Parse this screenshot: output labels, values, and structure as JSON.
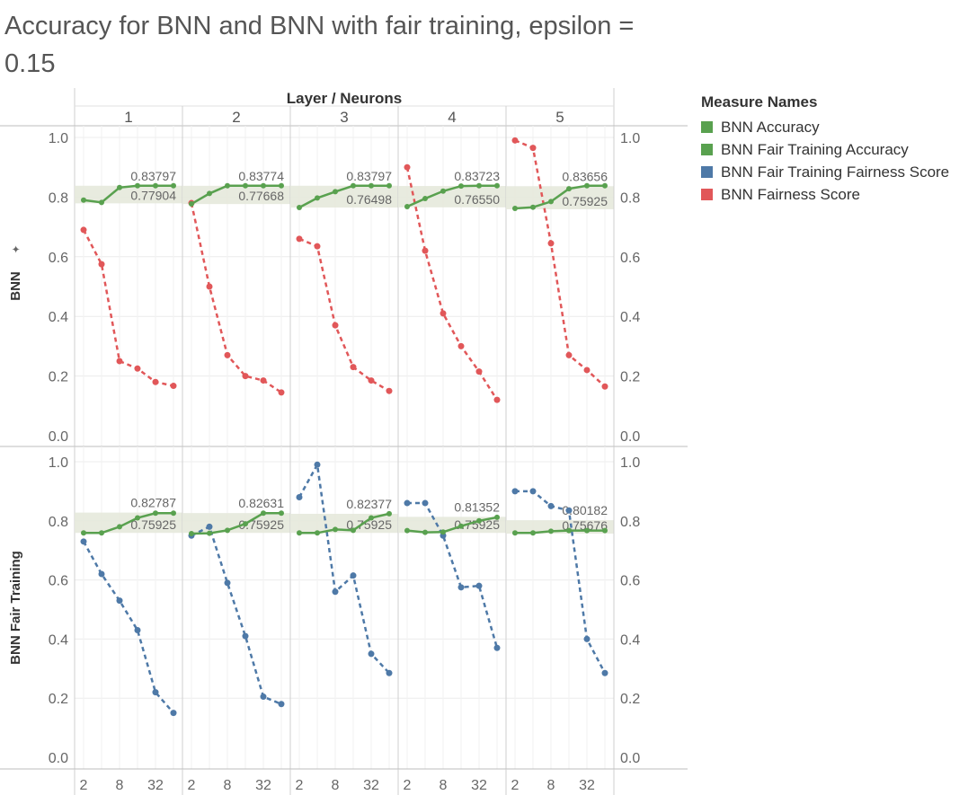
{
  "title": "Accuracy for BNN and BNN with fair training, epsilon = 0.15",
  "column_header": "Layer / Neurons",
  "legend": {
    "title": "Measure Names",
    "items": [
      {
        "label": "BNN Accuracy",
        "color": "#59a14f"
      },
      {
        "label": "BNN Fair Training Accuracy",
        "color": "#59a14f"
      },
      {
        "label": "BNN Fair Training Fairness Score",
        "color": "#4e79a7"
      },
      {
        "label": "BNN Fairness Score",
        "color": "#e15759"
      }
    ]
  },
  "chart_data": {
    "type": "line",
    "ylim": [
      0,
      1
    ],
    "yticks": [
      "1.0",
      "0.8",
      "0.6",
      "0.4",
      "0.2",
      "0.0"
    ],
    "x_tick_labels": [
      "2",
      "8",
      "32"
    ],
    "columns": [
      "1",
      "2",
      "3",
      "4",
      "5"
    ],
    "rows": [
      {
        "label": "BNN",
        "panels": [
          {
            "column": "1",
            "accuracy": [
              0.79,
              0.782,
              0.832,
              0.838,
              0.838,
              0.838
            ],
            "fairness": [
              0.69,
              0.575,
              0.25,
              0.225,
              0.18,
              0.167
            ],
            "band": [
              0.77904,
              0.83797
            ],
            "band_labels": [
              "0.83797",
              "0.77904"
            ]
          },
          {
            "column": "2",
            "accuracy": [
              0.777,
              0.812,
              0.838,
              0.838,
              0.838,
              0.838
            ],
            "fairness": [
              0.78,
              0.5,
              0.27,
              0.2,
              0.185,
              0.145
            ],
            "band": [
              0.77668,
              0.83774
            ],
            "band_labels": [
              "0.83774",
              "0.77668"
            ]
          },
          {
            "column": "3",
            "accuracy": [
              0.765,
              0.797,
              0.818,
              0.838,
              0.838,
              0.838
            ],
            "fairness": [
              0.66,
              0.635,
              0.37,
              0.23,
              0.185,
              0.15
            ],
            "band": [
              0.76498,
              0.83797
            ],
            "band_labels": [
              "0.83797",
              "0.76498"
            ]
          },
          {
            "column": "4",
            "accuracy": [
              0.768,
              0.795,
              0.82,
              0.837,
              0.838,
              0.838
            ],
            "fairness": [
              0.9,
              0.62,
              0.41,
              0.3,
              0.215,
              0.12
            ],
            "band": [
              0.7655,
              0.83723
            ],
            "band_labels": [
              "0.83723",
              "0.76550"
            ]
          },
          {
            "column": "5",
            "accuracy": [
              0.762,
              0.766,
              0.785,
              0.828,
              0.838,
              0.838
            ],
            "fairness": [
              0.99,
              0.965,
              0.645,
              0.27,
              0.22,
              0.165
            ],
            "band": [
              0.75925,
              0.83656
            ],
            "band_labels": [
              "0.83656",
              "0.75925"
            ]
          }
        ]
      },
      {
        "label": "BNN Fair Training",
        "panels": [
          {
            "column": "1",
            "accuracy": [
              0.759,
              0.759,
              0.78,
              0.81,
              0.826,
              0.826
            ],
            "fairness": [
              0.73,
              0.62,
              0.53,
              0.43,
              0.22,
              0.15
            ],
            "band": [
              0.75925,
              0.82787
            ],
            "band_labels": [
              "0.82787",
              "0.75925"
            ]
          },
          {
            "column": "2",
            "accuracy": [
              0.757,
              0.758,
              0.768,
              0.79,
              0.826,
              0.826
            ],
            "fairness": [
              0.75,
              0.78,
              0.59,
              0.41,
              0.205,
              0.18
            ],
            "band": [
              0.75925,
              0.82631
            ],
            "band_labels": [
              "0.82631",
              "0.75925"
            ]
          },
          {
            "column": "3",
            "accuracy": [
              0.759,
              0.759,
              0.771,
              0.768,
              0.81,
              0.824
            ],
            "fairness": [
              0.88,
              0.99,
              0.56,
              0.615,
              0.35,
              0.285
            ],
            "band": [
              0.75925,
              0.82377
            ],
            "band_labels": [
              "0.82377",
              "0.75925"
            ]
          },
          {
            "column": "4",
            "accuracy": [
              0.767,
              0.761,
              0.762,
              0.782,
              0.8,
              0.812
            ],
            "fairness": [
              0.86,
              0.86,
              0.75,
              0.575,
              0.58,
              0.37
            ],
            "band": [
              0.75925,
              0.81352
            ],
            "band_labels": [
              "0.81352",
              "0.75925"
            ]
          },
          {
            "column": "5",
            "accuracy": [
              0.759,
              0.759,
              0.765,
              0.767,
              0.767,
              0.767
            ],
            "fairness": [
              0.9,
              0.9,
              0.85,
              0.835,
              0.4,
              0.285
            ],
            "band": [
              0.75676,
              0.80182
            ],
            "band_labels": [
              "0.80182",
              "0.75676"
            ]
          }
        ]
      }
    ]
  }
}
